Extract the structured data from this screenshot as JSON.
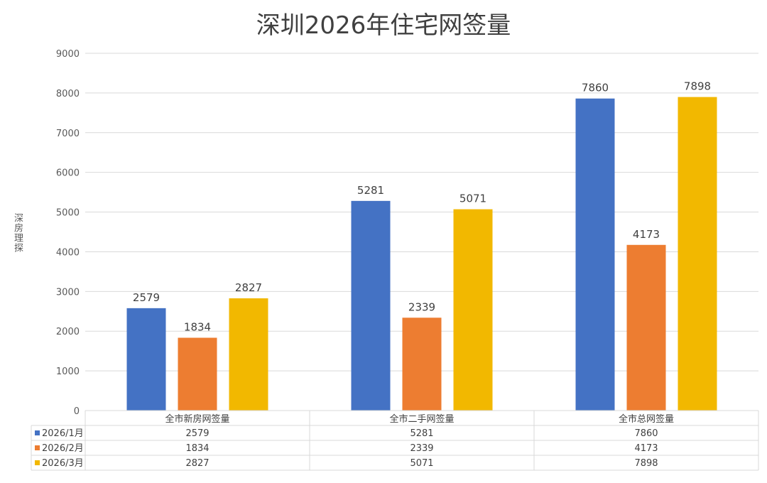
{
  "chart_data": {
    "type": "bar",
    "title": "深圳2026年住宅网签量",
    "ylabel": "深房理探",
    "xlabel": "",
    "ylim": [
      0,
      9000
    ],
    "yticks": [
      0,
      1000,
      2000,
      3000,
      4000,
      5000,
      6000,
      7000,
      8000,
      9000
    ],
    "grid": true,
    "legend": "data-table",
    "categories": [
      "全市新房网签量",
      "全市二手网签量",
      "全市总网签量"
    ],
    "series": [
      {
        "name": "2026/1月",
        "color": "#4472C4",
        "values": [
          2579,
          5281,
          7860
        ]
      },
      {
        "name": "2026/2月",
        "color": "#ED7D31",
        "values": [
          1834,
          2339,
          4173
        ]
      },
      {
        "name": "2026/3月",
        "color": "#F2B800",
        "values": [
          2827,
          5071,
          7898
        ]
      }
    ]
  }
}
